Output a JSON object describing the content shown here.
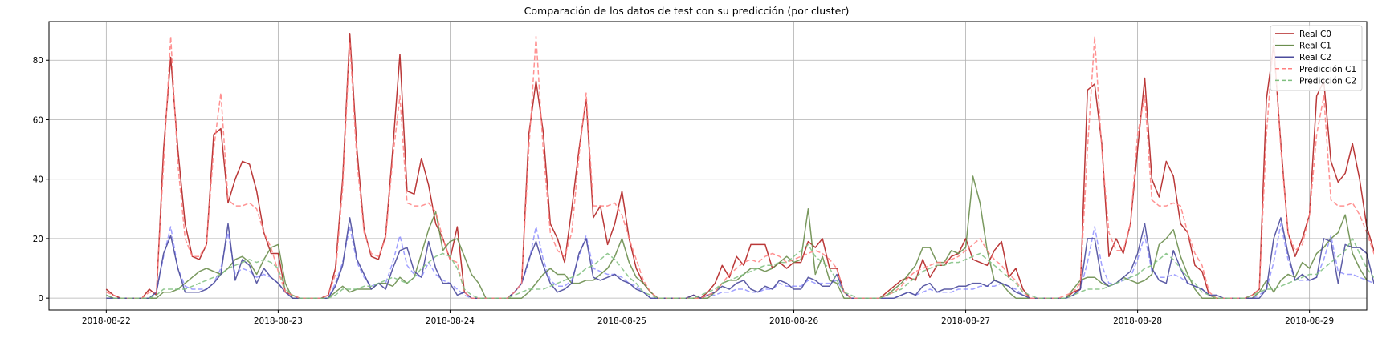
{
  "chart_data": {
    "type": "line",
    "title": "Comparación de los datos de test con su predicción (por cluster)",
    "xlabel": "",
    "ylabel": "",
    "xlim": [
      "2018-08-21T16:00",
      "2018-08-29T08:00"
    ],
    "ylim": [
      -4,
      93
    ],
    "x_start": "2018-08-22T00:00",
    "x_step_hours": 1,
    "x_ticks": [
      "2018-08-22",
      "2018-08-23",
      "2018-08-24",
      "2018-08-25",
      "2018-08-26",
      "2018-08-27",
      "2018-08-28",
      "2018-08-29"
    ],
    "y_ticks": [
      0,
      20,
      40,
      60,
      80
    ],
    "grid": true,
    "legend_position": "top-right",
    "series": [
      {
        "name": "Real C0",
        "color": "#b22222",
        "style": "solid",
        "values": [
          3,
          1,
          0,
          0,
          0,
          0,
          3,
          1,
          50,
          81,
          50,
          25,
          14,
          13,
          18,
          55,
          57,
          32,
          40,
          46,
          45,
          36,
          22,
          15,
          15,
          2,
          1,
          0,
          0,
          0,
          0,
          1,
          10,
          40,
          89,
          50,
          23,
          14,
          13,
          21,
          50,
          82,
          36,
          35,
          47,
          38,
          25,
          20,
          13,
          24,
          2,
          0,
          0,
          0,
          0,
          0,
          0,
          2,
          5,
          55,
          73,
          56,
          25,
          20,
          12,
          30,
          50,
          67,
          27,
          31,
          18,
          25,
          36,
          20,
          10,
          5,
          2,
          0,
          0,
          0,
          0,
          0,
          1,
          0,
          2,
          5,
          11,
          7,
          14,
          11,
          18,
          18,
          18,
          10,
          12,
          10,
          12,
          12,
          19,
          17,
          20,
          10,
          10,
          2,
          0,
          0,
          0,
          0,
          0,
          2,
          4,
          6,
          7,
          6,
          13,
          7,
          11,
          11,
          14,
          15,
          20,
          13,
          12,
          11,
          16,
          19,
          7,
          10,
          3,
          0,
          0,
          0,
          0,
          0,
          0,
          2,
          3,
          70,
          72,
          52,
          14,
          20,
          15,
          25,
          50,
          74,
          40,
          34,
          46,
          41,
          25,
          22,
          11,
          9,
          1,
          0,
          0,
          0,
          0,
          0,
          1,
          3,
          67,
          85,
          52,
          22,
          14,
          20,
          28,
          68,
          73,
          46,
          39,
          42,
          52,
          40,
          24,
          16,
          13
        ]
      },
      {
        "name": "Real C1",
        "color": "#6b8e4e",
        "style": "solid",
        "values": [
          1,
          0,
          0,
          0,
          0,
          0,
          0,
          0,
          2,
          2,
          3,
          5,
          7,
          9,
          10,
          9,
          8,
          10,
          13,
          14,
          12,
          8,
          13,
          17,
          18,
          5,
          0,
          0,
          0,
          0,
          0,
          0,
          2,
          4,
          2,
          3,
          3,
          3,
          5,
          5,
          4,
          7,
          5,
          7,
          15,
          23,
          29,
          16,
          19,
          20,
          14,
          8,
          5,
          0,
          0,
          0,
          0,
          0,
          0,
          2,
          5,
          8,
          10,
          8,
          8,
          5,
          5,
          6,
          6,
          8,
          10,
          14,
          20,
          12,
          7,
          5,
          2,
          0,
          0,
          0,
          0,
          0,
          0,
          0,
          0,
          2,
          5,
          6,
          6,
          8,
          10,
          10,
          9,
          10,
          12,
          14,
          12,
          13,
          30,
          8,
          14,
          6,
          5,
          0,
          0,
          0,
          0,
          0,
          0,
          1,
          3,
          5,
          8,
          11,
          17,
          17,
          12,
          12,
          16,
          15,
          17,
          41,
          32,
          16,
          6,
          5,
          2,
          0,
          0,
          0,
          0,
          0,
          0,
          0,
          0,
          3,
          6,
          7,
          7,
          5,
          4,
          5,
          7,
          6,
          5,
          6,
          8,
          18,
          20,
          23,
          14,
          8,
          3,
          0,
          0,
          0,
          0,
          0,
          0,
          0,
          0,
          2,
          6,
          2,
          6,
          8,
          7,
          12,
          10,
          15,
          17,
          20,
          22,
          28,
          15,
          10,
          6
        ]
      },
      {
        "name": "Real C2",
        "color": "#4b4b9c",
        "style": "solid",
        "values": [
          0,
          0,
          0,
          0,
          0,
          0,
          0,
          2,
          15,
          21,
          10,
          2,
          2,
          2,
          3,
          5,
          8,
          25,
          6,
          13,
          11,
          5,
          10,
          7,
          5,
          2,
          0,
          0,
          0,
          0,
          0,
          0,
          4,
          11,
          27,
          13,
          8,
          3,
          5,
          3,
          10,
          16,
          17,
          9,
          7,
          19,
          10,
          5,
          5,
          1,
          2,
          0,
          0,
          0,
          0,
          0,
          0,
          2,
          5,
          13,
          19,
          11,
          5,
          2,
          3,
          5,
          15,
          20,
          7,
          6,
          7,
          8,
          6,
          5,
          3,
          2,
          0,
          0,
          0,
          0,
          0,
          0,
          1,
          0,
          1,
          2,
          4,
          3,
          5,
          6,
          3,
          2,
          4,
          3,
          6,
          5,
          3,
          3,
          7,
          6,
          4,
          4,
          8,
          2,
          0,
          0,
          0,
          0,
          0,
          0,
          0,
          1,
          2,
          1,
          4,
          5,
          2,
          3,
          3,
          4,
          4,
          5,
          5,
          4,
          6,
          5,
          4,
          2,
          1,
          0,
          0,
          0,
          0,
          0,
          0,
          1,
          3,
          20,
          20,
          6,
          4,
          5,
          7,
          9,
          15,
          25,
          10,
          6,
          5,
          16,
          10,
          5,
          4,
          3,
          1,
          1,
          0,
          0,
          0,
          0,
          0,
          0,
          3,
          20,
          27,
          15,
          6,
          8,
          6,
          7,
          20,
          19,
          5,
          18,
          17,
          17,
          15,
          5,
          14,
          12
        ]
      },
      {
        "name": "Predicción C1",
        "color": "#ff7f7f",
        "style": "dashed",
        "values": [
          2,
          1,
          0,
          0,
          0,
          0,
          2,
          2,
          45,
          88,
          45,
          20,
          14,
          14,
          18,
          50,
          69,
          33,
          31,
          31,
          32,
          30,
          22,
          17,
          9,
          2,
          1,
          0,
          0,
          0,
          0,
          1,
          8,
          37,
          86,
          46,
          22,
          15,
          14,
          20,
          47,
          68,
          32,
          31,
          31,
          32,
          29,
          20,
          13,
          12,
          2,
          0,
          0,
          0,
          0,
          0,
          0,
          2,
          5,
          50,
          88,
          50,
          22,
          16,
          14,
          22,
          48,
          69,
          31,
          31,
          31,
          32,
          28,
          20,
          13,
          6,
          2,
          0,
          0,
          0,
          0,
          0,
          0,
          0,
          1,
          2,
          5,
          8,
          10,
          12,
          13,
          12,
          14,
          15,
          14,
          12,
          13,
          14,
          15,
          16,
          15,
          13,
          10,
          2,
          0,
          0,
          0,
          0,
          0,
          1,
          2,
          4,
          7,
          9,
          10,
          11,
          12,
          12,
          13,
          14,
          16,
          18,
          20,
          16,
          13,
          11,
          8,
          6,
          2,
          0,
          0,
          0,
          0,
          0,
          1,
          2,
          5,
          50,
          88,
          50,
          22,
          16,
          16,
          25,
          55,
          68,
          33,
          31,
          31,
          32,
          31,
          22,
          15,
          11,
          2,
          0,
          0,
          0,
          0,
          0,
          1,
          3,
          55,
          88,
          50,
          22,
          16,
          18,
          28,
          55,
          68,
          33,
          31,
          31,
          32,
          28,
          22,
          15,
          11
        ]
      },
      {
        "name": "Predicción C2",
        "color": "#7fbf7f",
        "style": "dashed",
        "values": [
          1,
          0,
          0,
          0,
          0,
          0,
          0,
          1,
          3,
          3,
          3,
          3,
          4,
          5,
          6,
          7,
          8,
          10,
          11,
          12,
          13,
          12,
          13,
          12,
          10,
          3,
          1,
          0,
          0,
          0,
          0,
          0,
          1,
          3,
          3,
          3,
          4,
          4,
          5,
          6,
          7,
          6,
          5,
          7,
          10,
          12,
          14,
          15,
          14,
          10,
          3,
          1,
          0,
          0,
          0,
          0,
          0,
          1,
          2,
          3,
          3,
          3,
          4,
          5,
          6,
          7,
          8,
          10,
          11,
          13,
          15,
          13,
          10,
          7,
          5,
          2,
          1,
          0,
          0,
          0,
          0,
          0,
          0,
          1,
          2,
          3,
          5,
          6,
          7,
          8,
          9,
          10,
          11,
          11,
          12,
          12,
          14,
          16,
          18,
          14,
          12,
          10,
          6,
          2,
          1,
          0,
          0,
          0,
          0,
          1,
          2,
          3,
          5,
          7,
          9,
          10,
          11,
          11,
          12,
          12,
          13,
          14,
          15,
          13,
          11,
          9,
          7,
          5,
          2,
          1,
          0,
          0,
          0,
          0,
          0,
          1,
          2,
          3,
          3,
          3,
          4,
          5,
          6,
          7,
          8,
          10,
          11,
          13,
          15,
          13,
          10,
          7,
          5,
          2,
          1,
          0,
          0,
          0,
          0,
          0,
          1,
          2,
          3,
          3,
          4,
          5,
          6,
          7,
          8,
          8,
          10,
          12,
          14,
          16,
          20,
          15,
          10,
          7,
          5
        ]
      }
    ],
    "ghost_series": {
      "color": "#8080ff",
      "style": "dashed",
      "values": [
        1,
        0,
        0,
        0,
        0,
        0,
        0,
        2,
        14,
        24,
        10,
        4,
        3,
        3,
        3,
        5,
        10,
        22,
        8,
        10,
        9,
        7,
        8,
        7,
        5,
        2,
        0,
        0,
        0,
        0,
        0,
        0,
        5,
        12,
        24,
        12,
        7,
        4,
        5,
        5,
        12,
        21,
        11,
        8,
        7,
        12,
        8,
        6,
        5,
        3,
        1,
        0,
        0,
        0,
        0,
        0,
        0,
        2,
        5,
        12,
        24,
        13,
        6,
        4,
        4,
        6,
        14,
        21,
        10,
        9,
        8,
        8,
        7,
        5,
        4,
        2,
        0,
        0,
        0,
        0,
        0,
        0,
        1,
        0,
        1,
        1,
        2,
        2,
        3,
        3,
        2,
        2,
        3,
        3,
        5,
        4,
        4,
        4,
        6,
        5,
        5,
        5,
        6,
        2,
        0,
        0,
        0,
        0,
        0,
        0,
        0,
        1,
        2,
        1,
        2,
        3,
        2,
        2,
        2,
        3,
        3,
        3,
        4,
        4,
        4,
        5,
        4,
        3,
        1,
        0,
        0,
        0,
        0,
        0,
        0,
        1,
        3,
        12,
        24,
        11,
        5,
        5,
        6,
        7,
        13,
        21,
        9,
        7,
        7,
        8,
        7,
        5,
        4,
        3,
        1,
        0,
        0,
        0,
        0,
        0,
        0,
        1,
        3,
        12,
        25,
        13,
        6,
        6,
        6,
        7,
        13,
        21,
        9,
        8,
        8,
        7,
        6,
        5,
        5,
        4
      ]
    }
  }
}
